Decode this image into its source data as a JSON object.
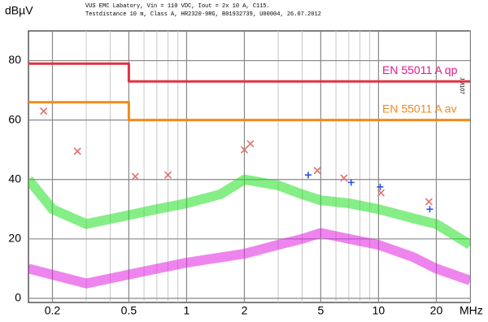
{
  "chart_data": {
    "type": "line",
    "ylabel": "dBµV",
    "xlabel": "MHz",
    "header": [
      "VUS EMC Labatory, Vin = 110 VDC, Iout = 2x 10 A, C115.",
      "Testdistance 10 m, Class A, HR2320-9RG, B01932739, U00004, 26.07.2012"
    ],
    "side_note": "JM107",
    "log_x": true,
    "grid": true,
    "xlim": [
      0.15,
      30
    ],
    "ylim": [
      -1.4,
      90
    ],
    "xticks": [
      0.2,
      0.5,
      1,
      2,
      5,
      10,
      20
    ],
    "xminor": [
      0.3,
      0.4,
      0.6,
      0.7,
      0.8,
      0.9,
      3,
      4,
      6,
      7,
      8,
      9,
      30
    ],
    "yticks": [
      0,
      20,
      40,
      60,
      80
    ],
    "series": [
      {
        "name": "EN 55011 A qp",
        "color": "#e2303f",
        "label_color": "#e0198a",
        "x": [
          0.15,
          0.5,
          0.5,
          30
        ],
        "values": [
          79,
          79,
          73,
          73
        ]
      },
      {
        "name": "EN 55011 A av",
        "color": "#f08a1c",
        "label_color": "#f08a1c",
        "x": [
          0.15,
          0.5,
          0.5,
          30
        ],
        "values": [
          66,
          66,
          60,
          60
        ]
      }
    ],
    "traces": [
      {
        "color": "#22e022",
        "x": [
          0.15,
          0.2,
          0.3,
          0.5,
          0.7,
          1,
          1.5,
          2,
          3,
          4,
          5,
          7,
          10,
          15,
          20,
          30
        ],
        "values": [
          40,
          30,
          25,
          28,
          30,
          32,
          35,
          40,
          38,
          35,
          33,
          32,
          30,
          27,
          25,
          18
        ]
      },
      {
        "color": "#e020e0",
        "x": [
          0.15,
          0.3,
          0.5,
          1,
          2,
          3,
          4,
          5,
          7,
          10,
          15,
          20,
          30
        ],
        "values": [
          10,
          5,
          8,
          12,
          15,
          18,
          20,
          22,
          20,
          18,
          14,
          10,
          6
        ]
      }
    ],
    "markers": [
      {
        "shape": "x",
        "color": "#e07070",
        "x": [
          0.18,
          0.27,
          0.54,
          0.8,
          2.0,
          2.15,
          4.8,
          6.6,
          10.3,
          18.3
        ],
        "values": [
          63,
          49.5,
          41,
          41.5,
          50,
          52,
          43,
          40.5,
          35.5,
          32.5
        ]
      },
      {
        "shape": "+",
        "color": "#3050e0",
        "x": [
          4.3,
          7.2,
          10.2,
          18.5
        ],
        "values": [
          41.5,
          39,
          37.5,
          30
        ]
      }
    ]
  }
}
